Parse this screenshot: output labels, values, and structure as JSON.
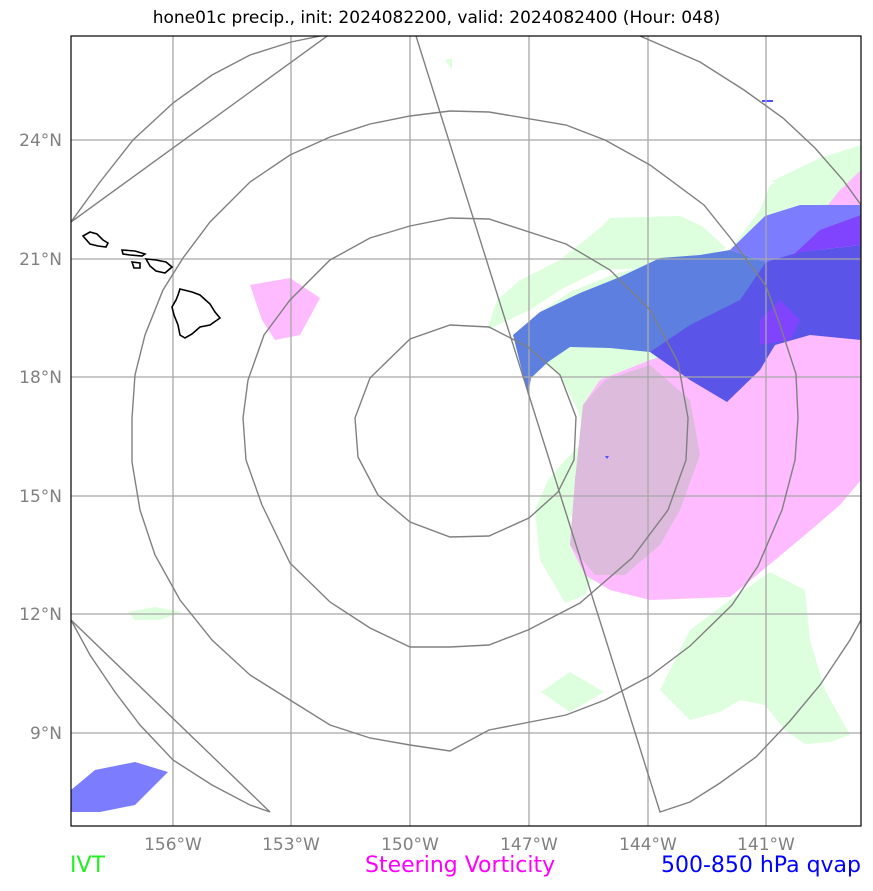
{
  "title": "hone01c precip., init: 2024082200, valid: 2024082400 (Hour: 048)",
  "axes": {
    "lat_labels": [
      "24°N",
      "21°N",
      "18°N",
      "15°N",
      "12°N",
      "9°N"
    ],
    "lon_labels": [
      "156°W",
      "153°W",
      "150°W",
      "147°W",
      "144°W",
      "141°W"
    ]
  },
  "legend": {
    "ivt": "IVT",
    "steering_vorticity": "Steering Vorticity",
    "qvap": "500-850 hPa qvap"
  },
  "colors": {
    "ivt": "#22ee22",
    "ivt_fill": "#ddffdd",
    "vorticity": "#ff00ff",
    "vorticity_fill": "#ffbbff",
    "qvap": "#0000ff",
    "qvap_fill": "#5560ff",
    "grid": "#a0a0a0",
    "range_rings": "#808080",
    "coast": "#000000"
  }
}
